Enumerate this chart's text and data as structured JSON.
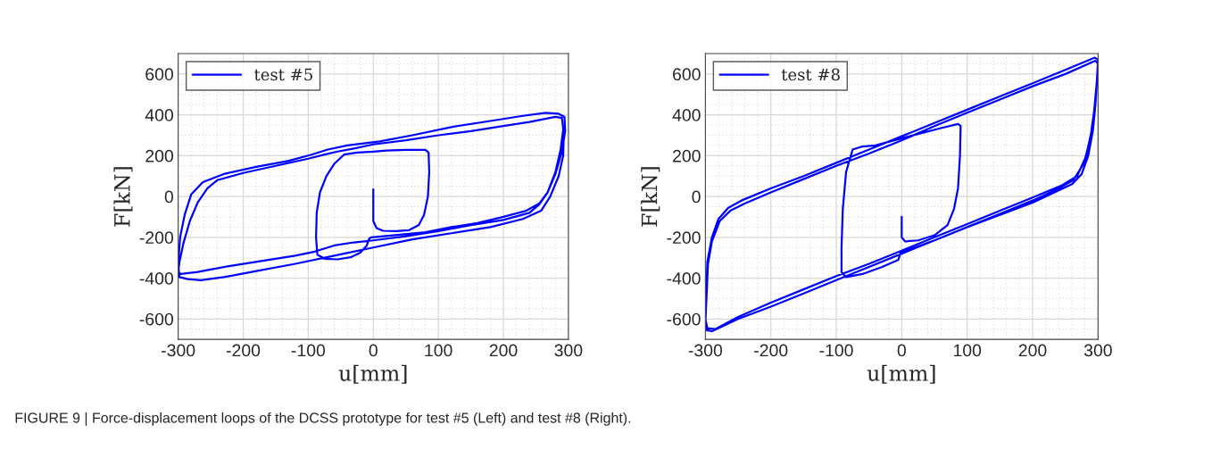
{
  "chart_data": [
    {
      "type": "line",
      "xlabel": "u[mm]",
      "ylabel": "F[kN]",
      "xlim": [
        -300,
        300
      ],
      "ylim": [
        -700,
        700
      ],
      "xticks": [
        -300,
        -200,
        -100,
        0,
        100,
        200,
        300
      ],
      "yticks": [
        -600,
        -400,
        -200,
        0,
        200,
        400,
        600
      ],
      "grid": true,
      "legend": "top left",
      "line_style": "solid",
      "series": [
        {
          "name": "test #5",
          "color": "#0000ff",
          "x": [
            0,
            0,
            5,
            15,
            35,
            55,
            70,
            78,
            84,
            86,
            85,
            80,
            50,
            20,
            0,
            -25,
            -45,
            -60,
            -72,
            -82,
            -87,
            -88,
            -86,
            -75,
            -55,
            -35,
            -20,
            -10,
            -6,
            -3,
            30,
            80,
            120,
            160,
            200,
            235,
            255,
            268,
            280,
            288,
            292,
            290,
            280,
            240,
            200,
            150,
            100,
            50,
            0,
            -30,
            -55,
            -75,
            -100,
            -150,
            -200,
            -240,
            -255,
            -270,
            -282,
            -292,
            -298,
            -300,
            -296,
            -270,
            -220,
            -170,
            -120,
            -90,
            -60,
            -30,
            0,
            50,
            100,
            150,
            200,
            240,
            255,
            268,
            280,
            290,
            295,
            294,
            285,
            265,
            230,
            180,
            120,
            60,
            10,
            -40,
            -70,
            -95,
            -130,
            -180,
            -230,
            -262,
            -280,
            -290,
            -297,
            -300,
            -298,
            -285,
            -265,
            -230,
            -180,
            -120,
            -60,
            0,
            60,
            120,
            180,
            230,
            258,
            272,
            285,
            292,
            293
          ],
          "values": [
            35,
            -120,
            -155,
            -168,
            -170,
            -165,
            -140,
            -90,
            0,
            120,
            215,
            228,
            228,
            225,
            220,
            215,
            205,
            160,
            100,
            20,
            -80,
            -200,
            -285,
            -305,
            -308,
            -298,
            -275,
            -240,
            -205,
            -200,
            -190,
            -175,
            -150,
            -130,
            -100,
            -70,
            -35,
            20,
            120,
            230,
            330,
            385,
            390,
            365,
            345,
            320,
            300,
            275,
            255,
            235,
            220,
            205,
            185,
            150,
            115,
            80,
            40,
            -30,
            -120,
            -230,
            -320,
            -370,
            -380,
            -370,
            -340,
            -315,
            -290,
            -270,
            -240,
            -225,
            -215,
            -195,
            -170,
            -140,
            -115,
            -80,
            -40,
            20,
            110,
            220,
            320,
            390,
            405,
            410,
            395,
            370,
            340,
            300,
            270,
            250,
            230,
            205,
            175,
            145,
            110,
            70,
            10,
            -90,
            -200,
            -330,
            -395,
            -405,
            -410,
            -395,
            -365,
            -330,
            -290,
            -250,
            -210,
            -180,
            -150,
            -110,
            -70,
            0,
            100,
            200,
            330
          ]
        }
      ],
      "annotations": [
        "FIGURE 9 | Force-displacement loops of the DCSS prototype for test #5 (Left) and test #8 (Right)."
      ]
    },
    {
      "type": "line",
      "xlabel": "u[mm]",
      "ylabel": "F[kN]",
      "xlim": [
        -300,
        300
      ],
      "ylim": [
        -700,
        700
      ],
      "xticks": [
        -300,
        -200,
        -100,
        0,
        100,
        200,
        300
      ],
      "yticks": [
        -600,
        -400,
        -200,
        0,
        200,
        400,
        600
      ],
      "grid": true,
      "legend": "top left",
      "line_style": "solid",
      "series": [
        {
          "name": "test #8",
          "color": "#0000ff",
          "x": [
            0,
            0,
            5,
            25,
            50,
            70,
            80,
            86,
            89,
            90,
            86,
            60,
            30,
            0,
            -40,
            -60,
            -75,
            -85,
            -90,
            -92,
            -92,
            -85,
            -60,
            -30,
            -5,
            -2,
            50,
            100,
            150,
            200,
            240,
            260,
            275,
            285,
            292,
            296,
            298,
            300,
            296,
            250,
            200,
            150,
            100,
            50,
            0,
            -50,
            -100,
            -150,
            -200,
            -240,
            -262,
            -278,
            -290,
            -296,
            -300,
            -298,
            -290,
            -250,
            -200,
            -150,
            -100,
            -50,
            0,
            50,
            100,
            150,
            200,
            240,
            262,
            278,
            288,
            294,
            298,
            300,
            295,
            250,
            200,
            150,
            100,
            50,
            0,
            -50,
            -100,
            -150,
            -200,
            -245,
            -265,
            -280,
            -290,
            -297,
            -300,
            -297,
            -285,
            -250,
            -200,
            -150,
            -100,
            -50,
            0,
            50,
            100,
            150,
            200,
            245,
            268,
            282,
            292,
            297,
            300
          ],
          "values": [
            -100,
            -200,
            -220,
            -215,
            -190,
            -140,
            -60,
            40,
            200,
            345,
            355,
            335,
            310,
            285,
            250,
            245,
            230,
            120,
            -60,
            -250,
            -370,
            -395,
            -380,
            -345,
            -310,
            -275,
            -215,
            -150,
            -90,
            -30,
            30,
            60,
            110,
            200,
            320,
            450,
            560,
            650,
            665,
            600,
            540,
            475,
            410,
            345,
            275,
            210,
            150,
            85,
            20,
            -35,
            -70,
            -120,
            -220,
            -330,
            -620,
            -655,
            -660,
            -600,
            -540,
            -475,
            -410,
            -345,
            -280,
            -215,
            -150,
            -85,
            -20,
            40,
            80,
            160,
            280,
            420,
            560,
            670,
            680,
            620,
            555,
            490,
            425,
            360,
            295,
            230,
            165,
            100,
            40,
            -20,
            -55,
            -110,
            -200,
            -320,
            -600,
            -645,
            -650,
            -590,
            -520,
            -455,
            -390,
            -330,
            -265,
            -200,
            -135,
            -70,
            -5,
            55,
            100,
            200,
            350,
            500,
            640
          ]
        }
      ]
    }
  ]
}
